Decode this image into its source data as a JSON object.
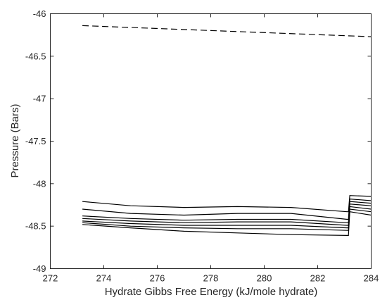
{
  "chart_data": {
    "type": "line",
    "title": "",
    "xlabel": "Hydrate Gibbs Free Energy (kJ/mole hydrate)",
    "ylabel": "Pressure (Bars)",
    "xlim": [
      272,
      284
    ],
    "ylim": [
      -49,
      -46
    ],
    "xticks": [
      "272",
      "274",
      "276",
      "278",
      "280",
      "282",
      "284"
    ],
    "yticks": [
      "-46",
      "-46.5",
      "-47",
      "-47.5",
      "-48",
      "-48.5",
      "-49"
    ],
    "grid": false,
    "legend": "none",
    "series": [
      {
        "style": "dashed",
        "color": "#000000",
        "x": [
          273.2,
          284
        ],
        "y": [
          -46.14,
          -46.27
        ]
      },
      {
        "style": "solid",
        "color": "#000000",
        "x": [
          273.2,
          275,
          277,
          279,
          281,
          283.1,
          283.15,
          283.2,
          284
        ],
        "y": [
          -48.21,
          -48.26,
          -48.28,
          -48.27,
          -48.28,
          -48.33,
          -48.33,
          -48.14,
          -48.15
        ]
      },
      {
        "style": "solid",
        "color": "#000000",
        "x": [
          273.2,
          275,
          277,
          279,
          281,
          283.1,
          283.15,
          283.2,
          284
        ],
        "y": [
          -48.3,
          -48.35,
          -48.37,
          -48.35,
          -48.35,
          -48.42,
          -48.42,
          -48.18,
          -48.2
        ]
      },
      {
        "style": "solid",
        "color": "#000000",
        "x": [
          273.2,
          275,
          277,
          279,
          281,
          283.1,
          283.15,
          283.2,
          284
        ],
        "y": [
          -48.38,
          -48.41,
          -48.43,
          -48.42,
          -48.42,
          -48.46,
          -48.46,
          -48.21,
          -48.23
        ]
      },
      {
        "style": "solid",
        "color": "#000000",
        "x": [
          273.2,
          275,
          277,
          279,
          281,
          283.1,
          283.15,
          283.2,
          284
        ],
        "y": [
          -48.41,
          -48.44,
          -48.46,
          -48.45,
          -48.45,
          -48.49,
          -48.49,
          -48.24,
          -48.26
        ]
      },
      {
        "style": "solid",
        "color": "#000000",
        "x": [
          273.2,
          275,
          277,
          279,
          281,
          283.1,
          283.15,
          283.2,
          284
        ],
        "y": [
          -48.44,
          -48.47,
          -48.49,
          -48.49,
          -48.49,
          -48.52,
          -48.52,
          -48.27,
          -48.3
        ]
      },
      {
        "style": "solid",
        "color": "#000000",
        "x": [
          273.2,
          275,
          277,
          279,
          281,
          283.1,
          283.15,
          283.2,
          284
        ],
        "y": [
          -48.46,
          -48.5,
          -48.52,
          -48.53,
          -48.53,
          -48.55,
          -48.55,
          -48.3,
          -48.33
        ]
      },
      {
        "style": "solid",
        "color": "#000000",
        "x": [
          273.2,
          275,
          277,
          279,
          281,
          283.1,
          283.15,
          283.2,
          284
        ],
        "y": [
          -48.48,
          -48.52,
          -48.56,
          -48.58,
          -48.6,
          -48.61,
          -48.61,
          -48.33,
          -48.37
        ]
      }
    ]
  }
}
